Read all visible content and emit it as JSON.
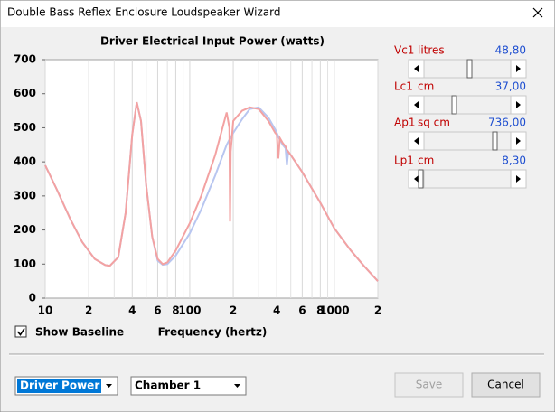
{
  "window": {
    "title": "Double Bass Reflex Enclosure Loudspeaker Wizard"
  },
  "chart_data": {
    "type": "line",
    "title": "Driver Electrical Input Power (watts)",
    "x_label": "Frequency (hertz)",
    "x": [
      10,
      12,
      15,
      18,
      22,
      26,
      28,
      32,
      36,
      40,
      43,
      46,
      50,
      55,
      60,
      65,
      70,
      80,
      100,
      120,
      150,
      180,
      188,
      190,
      192,
      200,
      230,
      260,
      300,
      350,
      390,
      400,
      410,
      420,
      440,
      460,
      470,
      480,
      500,
      600,
      800,
      1000,
      1300,
      1600,
      2000
    ],
    "series": [
      {
        "color": "#f3a2a2",
        "values": [
          390,
          320,
          230,
          165,
          115,
          97,
          95,
          120,
          250,
          480,
          575,
          520,
          330,
          180,
          115,
          100,
          105,
          140,
          220,
          300,
          420,
          545,
          500,
          225,
          430,
          520,
          550,
          560,
          555,
          520,
          485,
          480,
          410,
          470,
          455,
          445,
          435,
          430,
          420,
          370,
          280,
          205,
          140,
          95,
          50
        ]
      },
      {
        "color": "#b8c6f0",
        "values": [
          390,
          320,
          230,
          165,
          115,
          97,
          95,
          120,
          250,
          480,
          575,
          520,
          330,
          180,
          110,
          98,
          100,
          125,
          190,
          260,
          360,
          450,
          465,
          468,
          472,
          485,
          525,
          555,
          560,
          530,
          495,
          485,
          475,
          465,
          450,
          440,
          390,
          430,
          420,
          370,
          280,
          205,
          140,
          95,
          50
        ]
      }
    ],
    "xscale": "log",
    "xlim": [
      10,
      2000
    ],
    "xticks": [
      10,
      {
        "value": 20,
        "label": "2"
      },
      {
        "value": 40,
        "label": "4"
      },
      {
        "value": 60,
        "label": "6"
      },
      {
        "value": 80,
        "label": "8"
      },
      100,
      {
        "value": 200,
        "label": "2"
      },
      {
        "value": 400,
        "label": "4"
      },
      {
        "value": 600,
        "label": "6"
      },
      {
        "value": 800,
        "label": "8"
      },
      1000,
      {
        "value": 2000,
        "label": "2"
      }
    ],
    "xminor": [
      30,
      50,
      70,
      90,
      300,
      500,
      700,
      900
    ],
    "ylim": [
      0,
      700
    ],
    "yticks": [
      0,
      100,
      200,
      300,
      400,
      500,
      600,
      700
    ],
    "grid": "x"
  },
  "parameters": [
    {
      "name": "Vc1",
      "unit": "litres",
      "value": "48,80"
    },
    {
      "name": "Lc1",
      "unit": "cm",
      "value": "37,00"
    },
    {
      "name": "Ap1",
      "unit": "sq cm",
      "value": "736,00"
    },
    {
      "name": "Lp1",
      "unit": "cm",
      "value": "8,30"
    }
  ],
  "baseline_checkbox": {
    "label": "Show Baseline",
    "checked": true
  },
  "selectors": [
    "Driver Power",
    "Chamber 1"
  ],
  "buttons": [
    "Save",
    "Cancel"
  ]
}
